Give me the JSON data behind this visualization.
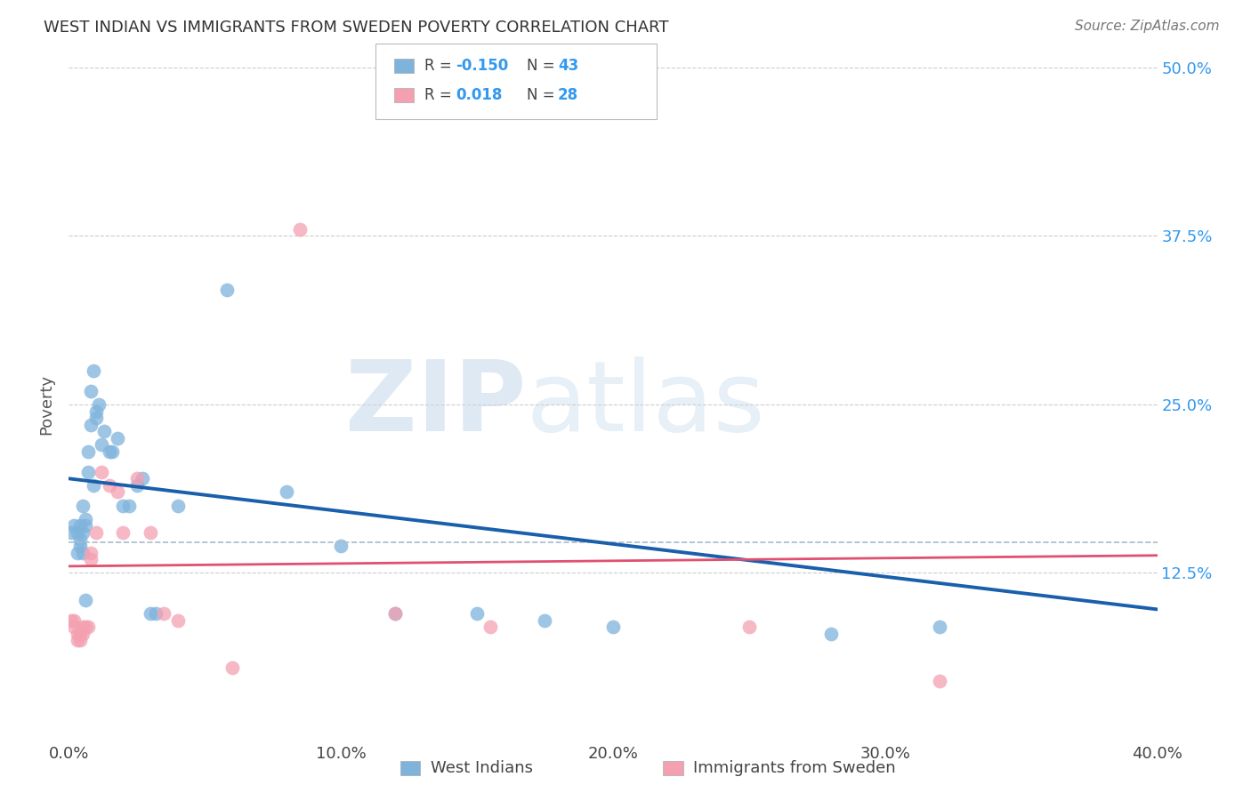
{
  "title": "WEST INDIAN VS IMMIGRANTS FROM SWEDEN POVERTY CORRELATION CHART",
  "source": "Source: ZipAtlas.com",
  "xlabel_west": "West Indians",
  "xlabel_sweden": "Immigrants from Sweden",
  "ylabel": "Poverty",
  "xlim": [
    0,
    0.4
  ],
  "ylim": [
    0,
    0.5
  ],
  "xticks": [
    0.0,
    0.1,
    0.2,
    0.3,
    0.4
  ],
  "yticks": [
    0.0,
    0.125,
    0.25,
    0.375,
    0.5
  ],
  "ytick_labels": [
    "",
    "12.5%",
    "25.0%",
    "37.5%",
    "50.0%"
  ],
  "xtick_labels": [
    "0.0%",
    "10.0%",
    "20.0%",
    "30.0%",
    "40.0%"
  ],
  "west_indian_color": "#7EB3DC",
  "sweden_color": "#F4A0B0",
  "west_indian_R": -0.15,
  "west_indian_N": 43,
  "sweden_R": 0.018,
  "sweden_N": 28,
  "west_indian_line_color": "#1A5FAB",
  "sweden_line_color": "#E05070",
  "watermark_zip": "ZIP",
  "watermark_atlas": "atlas",
  "background_color": "#ffffff",
  "west_indian_x": [
    0.001,
    0.002,
    0.003,
    0.003,
    0.004,
    0.004,
    0.004,
    0.005,
    0.005,
    0.005,
    0.006,
    0.006,
    0.006,
    0.007,
    0.007,
    0.008,
    0.008,
    0.009,
    0.009,
    0.01,
    0.01,
    0.011,
    0.012,
    0.013,
    0.015,
    0.016,
    0.018,
    0.02,
    0.022,
    0.025,
    0.027,
    0.03,
    0.032,
    0.04,
    0.058,
    0.08,
    0.1,
    0.12,
    0.15,
    0.175,
    0.2,
    0.28,
    0.32
  ],
  "west_indian_y": [
    0.155,
    0.16,
    0.155,
    0.14,
    0.16,
    0.15,
    0.145,
    0.175,
    0.155,
    0.14,
    0.165,
    0.16,
    0.105,
    0.2,
    0.215,
    0.26,
    0.235,
    0.275,
    0.19,
    0.24,
    0.245,
    0.25,
    0.22,
    0.23,
    0.215,
    0.215,
    0.225,
    0.175,
    0.175,
    0.19,
    0.195,
    0.095,
    0.095,
    0.175,
    0.335,
    0.185,
    0.145,
    0.095,
    0.095,
    0.09,
    0.085,
    0.08,
    0.085
  ],
  "sweden_x": [
    0.001,
    0.002,
    0.002,
    0.003,
    0.003,
    0.004,
    0.004,
    0.005,
    0.005,
    0.006,
    0.007,
    0.008,
    0.008,
    0.01,
    0.012,
    0.015,
    0.018,
    0.02,
    0.025,
    0.03,
    0.035,
    0.04,
    0.06,
    0.085,
    0.12,
    0.155,
    0.25,
    0.32
  ],
  "sweden_y": [
    0.09,
    0.09,
    0.085,
    0.08,
    0.075,
    0.08,
    0.075,
    0.08,
    0.085,
    0.085,
    0.085,
    0.14,
    0.135,
    0.155,
    0.2,
    0.19,
    0.185,
    0.155,
    0.195,
    0.155,
    0.095,
    0.09,
    0.055,
    0.38,
    0.095,
    0.085,
    0.085,
    0.045
  ],
  "blue_line_y0": 0.195,
  "blue_line_y1": 0.098,
  "pink_line_y0": 0.13,
  "pink_line_y1": 0.138,
  "dashed_line_y0": 0.148,
  "dashed_line_y1": 0.148
}
